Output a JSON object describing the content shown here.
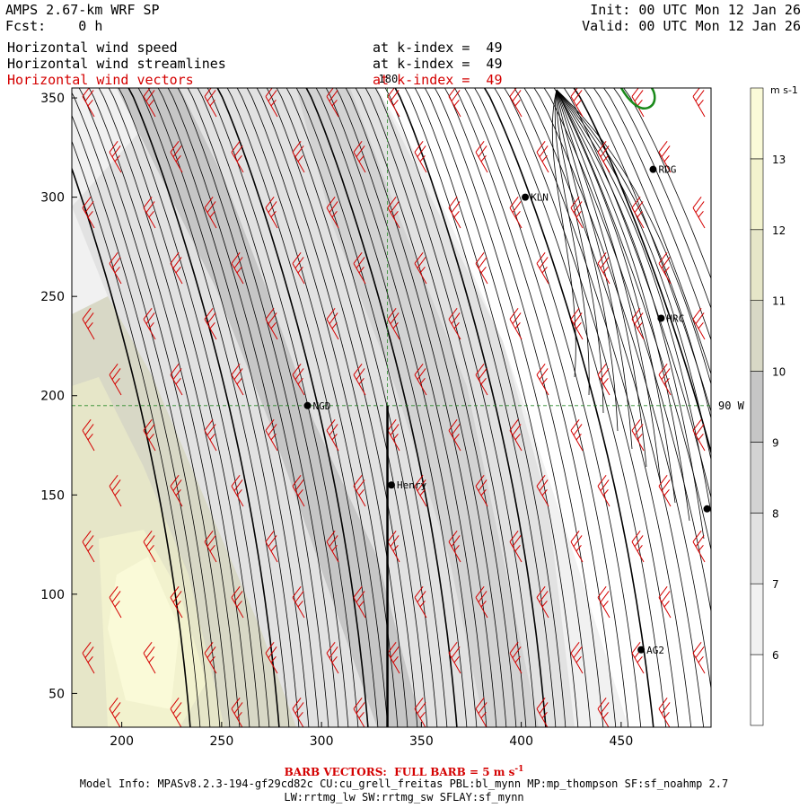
{
  "header": {
    "left_line1": "AMPS 2.67-km WRF SP",
    "left_line2": "Fcst:    0 h",
    "right_line1": "Init: 00 UTC Mon 12 Jan 26",
    "right_line2": "Valid: 00 UTC Mon 12 Jan 26",
    "fields": [
      {
        "label": "Horizontal wind speed",
        "level": "at k-index =  49",
        "color": "#000000"
      },
      {
        "label": "Horizontal wind streamlines",
        "level": "at k-index =  49",
        "color": "#000000"
      },
      {
        "label": "Horizontal wind vectors",
        "level": "at k-index =  49",
        "color": "#d40000"
      }
    ]
  },
  "chart_data": {
    "type": "heatmap",
    "title": "Horizontal wind speed",
    "x_ticks": [
      200,
      250,
      300,
      350,
      400,
      450
    ],
    "y_ticks": [
      50,
      100,
      150,
      200,
      250,
      300,
      350
    ],
    "xlim": [
      175,
      495
    ],
    "ylim": [
      33,
      355
    ],
    "grid_lines": [
      {
        "axis": "x",
        "value": 333,
        "label": "180"
      },
      {
        "axis": "y",
        "value": 195,
        "label": "90 W"
      }
    ],
    "colorbar": {
      "unit": "m s-1",
      "levels": [
        6,
        7,
        8,
        9,
        10,
        11,
        12,
        13
      ],
      "colors": [
        "#ffffff",
        "#f1f1f1",
        "#e2e2e2",
        "#d3d3d3",
        "#c6c6c6",
        "#d8d8c6",
        "#e6e6c8",
        "#f2f2ce",
        "#fafad8"
      ]
    },
    "stations": [
      {
        "name": "RDG",
        "x": 466,
        "y": 314
      },
      {
        "name": "KLN",
        "x": 402,
        "y": 300
      },
      {
        "name": "HRC",
        "x": 470,
        "y": 239
      },
      {
        "name": "NGD",
        "x": 293,
        "y": 195
      },
      {
        "name": "Henry",
        "x": 335,
        "y": 155
      },
      {
        "name": "AG2",
        "x": 460,
        "y": 72
      },
      {
        "name": "",
        "x": 493,
        "y": 143
      }
    ],
    "wind_barb_direction_deg": 330
  },
  "footer": {
    "barb_note": "BARB VECTORS:  FULL BARB = 5 m s",
    "barb_unit_sup": "-1",
    "model_info": "Model Info: MPASv8.2.3-194-gf29cd82c CU:cu_grell_freitas PBL:bl_mynn MP:mp_thompson SF:sf_noahmp 2.7",
    "model_info2": "LW:rrtmg_lw SW:rrtmg_sw SFLAY:sf_mynn"
  }
}
